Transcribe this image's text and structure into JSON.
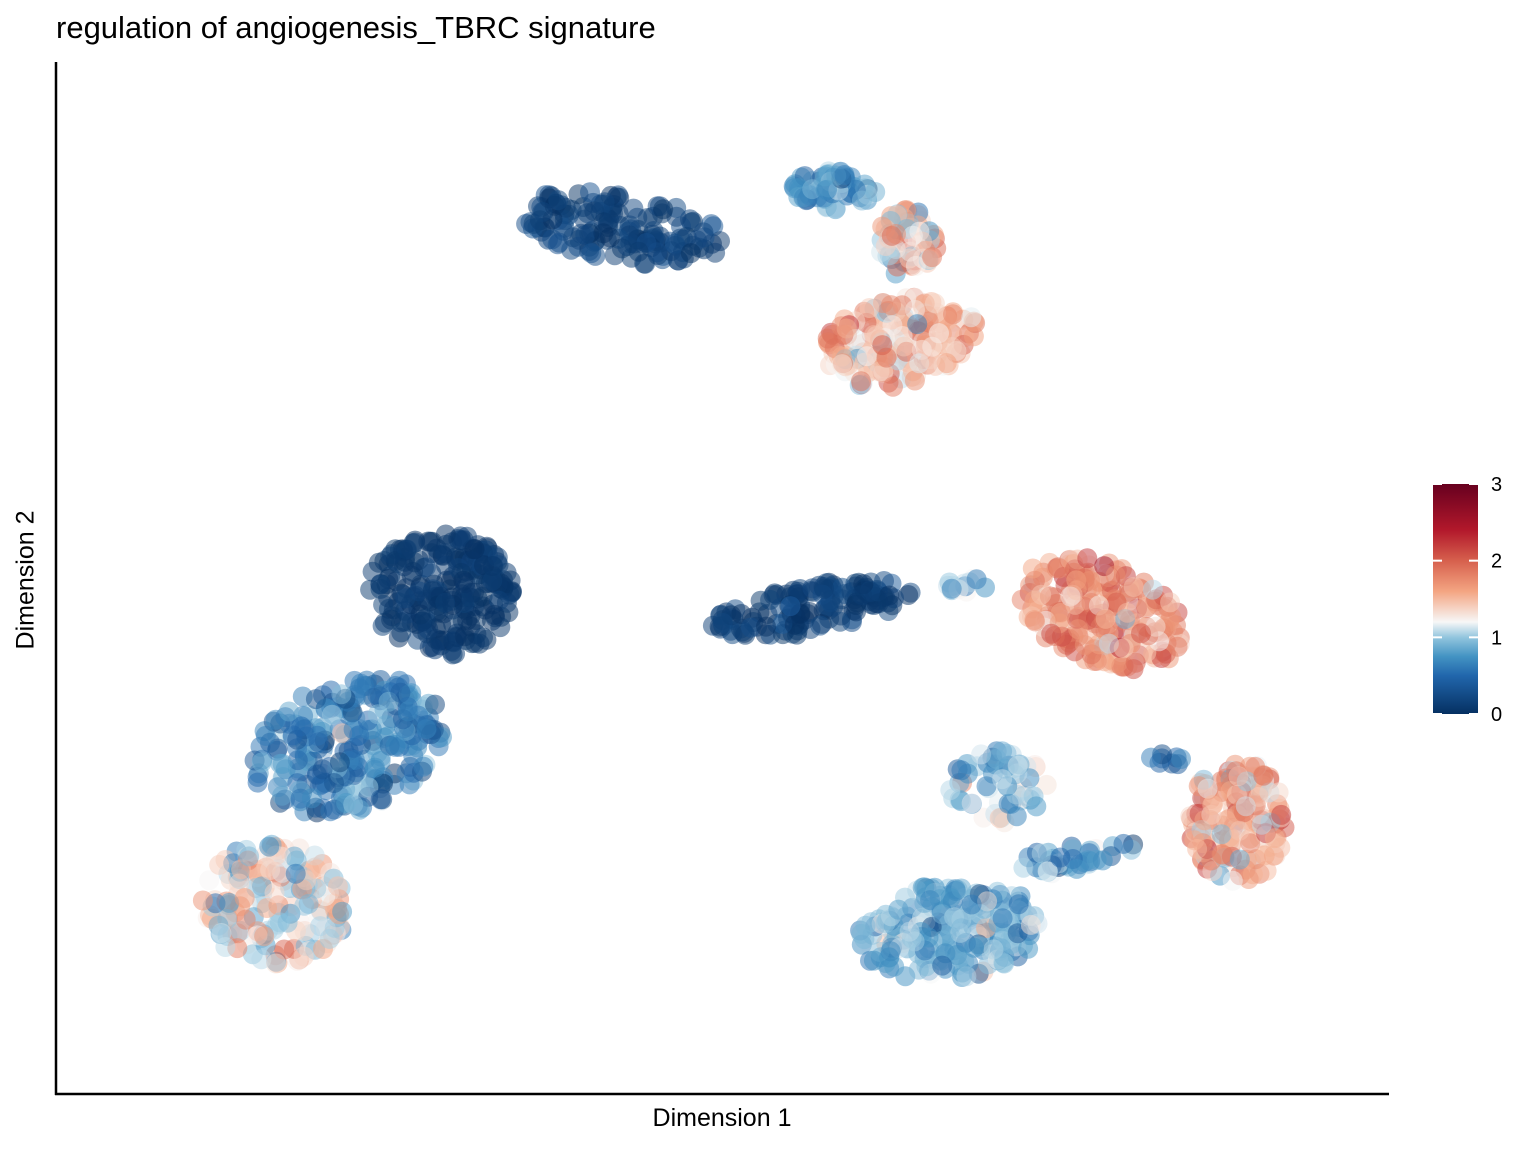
{
  "chart_data": {
    "type": "scatter",
    "title": "regulation of angiogenesis_TBRC signature",
    "xlabel": "Dimension 1",
    "ylabel": "Dimension 2",
    "xlim": [
      0,
      100
    ],
    "ylim": [
      0,
      100
    ],
    "x_ticks_shown": false,
    "y_ticks_shown": false,
    "grid": false,
    "point_opacity": 0.5,
    "colorbar": {
      "position": "right",
      "range": [
        0,
        3
      ],
      "ticks": [
        "0",
        "1",
        "2",
        "3"
      ],
      "colors": [
        "#053061",
        "#2166ac",
        "#4393c3",
        "#92c5de",
        "#f7f7f7",
        "#f4a582",
        "#d6604d",
        "#b2182b",
        "#67001f"
      ],
      "color_stops": [
        0,
        0.5,
        0.75,
        1.0,
        1.2,
        1.6,
        2.0,
        2.4,
        3.0
      ]
    },
    "clusters": [
      {
        "id": "top-left-arm",
        "cx": 42.0,
        "cy": 86.5,
        "rx": 9.0,
        "ry": 3.5,
        "angle": -12,
        "n": 150,
        "score_mean": 0.15,
        "score_sd": 0.12
      },
      {
        "id": "top-arm-end",
        "cx": 59.0,
        "cy": 90.5,
        "rx": 3.5,
        "ry": 2.0,
        "angle": 0,
        "n": 70,
        "score_mean": 0.75,
        "score_sd": 0.25
      },
      {
        "id": "top-right-lobe",
        "cx": 64.5,
        "cy": 74.5,
        "rx": 6.5,
        "ry": 4.5,
        "angle": 20,
        "n": 200,
        "score_mean": 1.5,
        "score_sd": 0.3
      },
      {
        "id": "top-right-upper",
        "cx": 65.0,
        "cy": 85.0,
        "rx": 2.5,
        "ry": 3.5,
        "angle": 0,
        "n": 70,
        "score_mean": 1.3,
        "score_sd": 0.35
      },
      {
        "id": "left-dark-blob",
        "cx": 27.0,
        "cy": 48.0,
        "rx": 6.0,
        "ry": 6.5,
        "angle": 0,
        "n": 230,
        "score_mean": 0.05,
        "score_sd": 0.08
      },
      {
        "id": "left-mid-blob",
        "cx": 19.5,
        "cy": 32.0,
        "rx": 8.5,
        "ry": 6.5,
        "angle": 35,
        "n": 260,
        "score_mean": 0.6,
        "score_sd": 0.25
      },
      {
        "id": "left-bottom-blob",
        "cx": 13.5,
        "cy": 15.5,
        "rx": 6.0,
        "ry": 6.5,
        "angle": 0,
        "n": 170,
        "score_mean": 1.25,
        "score_sd": 0.35
      },
      {
        "id": "middle-dark-strip",
        "cx": 57.5,
        "cy": 46.5,
        "rx": 8.5,
        "ry": 2.5,
        "angle": 12,
        "n": 140,
        "score_mean": 0.12,
        "score_sd": 0.12
      },
      {
        "id": "middle-right-bridge",
        "cx": 70.0,
        "cy": 49.0,
        "rx": 2.5,
        "ry": 0.8,
        "angle": 0,
        "n": 14,
        "score_mean": 1.1,
        "score_sd": 0.2
      },
      {
        "id": "right-upper-arm",
        "cx": 81.0,
        "cy": 46.0,
        "rx": 7.5,
        "ry": 5.0,
        "angle": -35,
        "n": 220,
        "score_mean": 1.75,
        "score_sd": 0.3
      },
      {
        "id": "right-lower-lobe",
        "cx": 92.0,
        "cy": 24.0,
        "rx": 4.0,
        "ry": 6.5,
        "angle": 0,
        "n": 180,
        "score_mean": 1.6,
        "score_sd": 0.35
      },
      {
        "id": "bottom-middle-blob",
        "cx": 68.5,
        "cy": 12.5,
        "rx": 7.5,
        "ry": 5.0,
        "angle": 10,
        "n": 220,
        "score_mean": 0.85,
        "score_sd": 0.25
      },
      {
        "id": "bottom-middle-upper",
        "cx": 72.5,
        "cy": 27.5,
        "rx": 4.0,
        "ry": 4.0,
        "angle": 0,
        "n": 60,
        "score_mean": 0.95,
        "score_sd": 0.3
      },
      {
        "id": "bottom-bridge",
        "cx": 79.0,
        "cy": 20.5,
        "rx": 5.0,
        "ry": 1.5,
        "angle": 15,
        "n": 40,
        "score_mean": 0.75,
        "score_sd": 0.25
      },
      {
        "id": "right-spur",
        "cx": 86.0,
        "cy": 30.5,
        "rx": 1.5,
        "ry": 0.8,
        "angle": 0,
        "n": 8,
        "score_mean": 0.5,
        "score_sd": 0.15
      }
    ]
  }
}
